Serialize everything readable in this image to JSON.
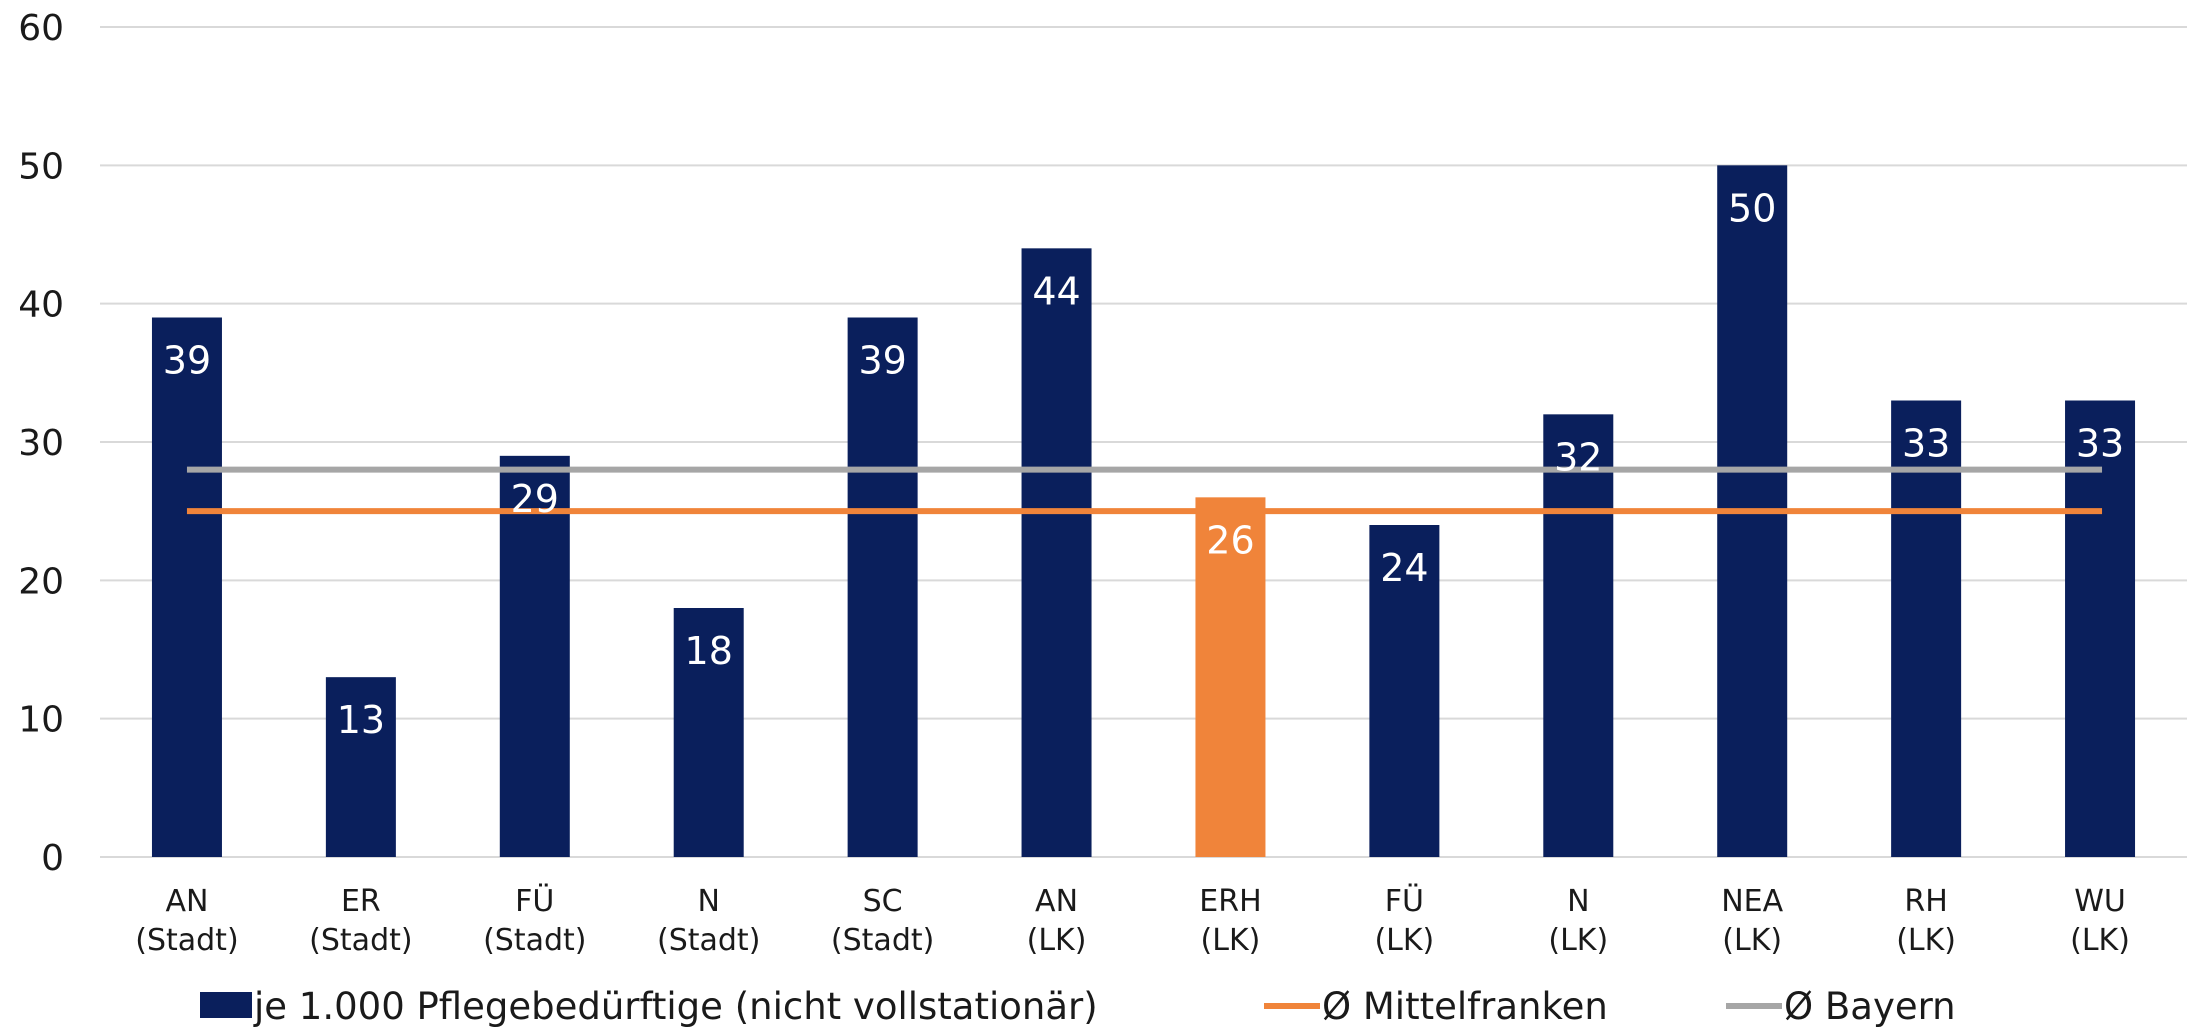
{
  "chart_data": {
    "type": "bar",
    "title": "",
    "xlabel": "",
    "ylabel": "",
    "ylim": [
      0,
      60
    ],
    "yticks": [
      0,
      10,
      20,
      30,
      40,
      50,
      60
    ],
    "grid": true,
    "legend_position": "bottom",
    "categories": [
      [
        "AN",
        "(Stadt)"
      ],
      [
        "ER",
        "(Stadt)"
      ],
      [
        "FÜ",
        "(Stadt)"
      ],
      [
        "N",
        "(Stadt)"
      ],
      [
        "SC",
        "(Stadt)"
      ],
      [
        "AN",
        "(LK)"
      ],
      [
        "ERH",
        "(LK)"
      ],
      [
        "FÜ",
        "(LK)"
      ],
      [
        "N",
        "(LK)"
      ],
      [
        "NEA",
        "(LK)"
      ],
      [
        "RH",
        "(LK)"
      ],
      [
        "WU",
        "(LK)"
      ]
    ],
    "series": [
      {
        "name": "je 1.000 Pflegebedürftige (nicht vollstationär)",
        "kind": "bar",
        "color": "#0a1f5c",
        "highlight_index": 6,
        "highlight_color": "#f0843a",
        "values": [
          39,
          13,
          29,
          18,
          39,
          44,
          26,
          24,
          32,
          50,
          33,
          33
        ],
        "labels": [
          "39",
          "13",
          "29",
          "18",
          "39",
          "44",
          "26",
          "24",
          "32",
          "50",
          "33",
          "33"
        ]
      },
      {
        "name": "Ø Mittelfranken",
        "kind": "line",
        "color": "#f0843a",
        "value": 25
      },
      {
        "name": "Ø Bayern",
        "kind": "line",
        "color": "#a6a6a6",
        "value": 28
      }
    ],
    "gridline_color": "#d9d9d9"
  }
}
